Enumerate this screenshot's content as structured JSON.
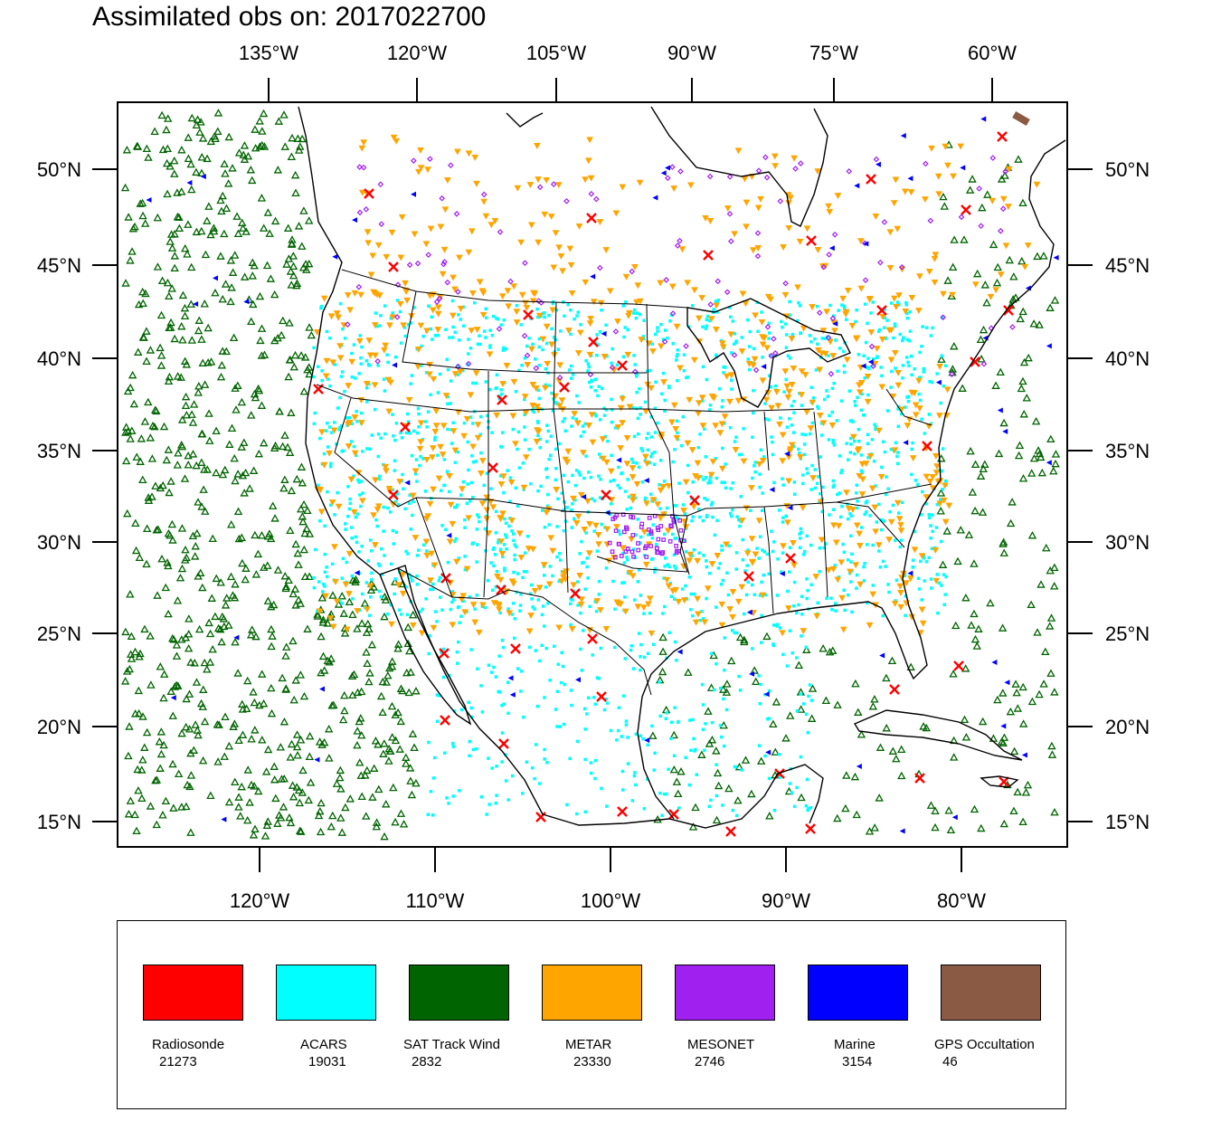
{
  "title": "Assimilated obs on: 2017022700",
  "map": {
    "top_lon_labels": [
      "135°W",
      "120°W",
      "105°W",
      "90°W",
      "75°W",
      "60°W"
    ],
    "bottom_lon_labels": [
      "120°W",
      "110°W",
      "100°W",
      "90°W",
      "80°W"
    ],
    "left_lat_labels": [
      "50°N",
      "45°N",
      "40°N",
      "35°N",
      "30°N",
      "25°N",
      "20°N",
      "15°N"
    ],
    "right_lat_labels": [
      "50°N",
      "45°N",
      "40°N",
      "35°N",
      "30°N",
      "25°N",
      "20°N",
      "15°N"
    ],
    "lon_range_bottom_axis": [
      -128,
      -74
    ],
    "lat_range": [
      14,
      53
    ],
    "projection": "Lambert conformal (approx.)"
  },
  "legend": {
    "items": [
      {
        "name": "Radiosonde",
        "count": "21273",
        "color": "#ff0000",
        "marker": "x-icon"
      },
      {
        "name": "ACARS",
        "count": "19031",
        "color": "#00ffff",
        "marker": "square-dot-icon"
      },
      {
        "name": "SAT Track Wind",
        "count": "2832",
        "color": "#006400",
        "marker": "triangle-up-icon"
      },
      {
        "name": "METAR",
        "count": "23330",
        "color": "#ffa500",
        "marker": "triangle-down-icon"
      },
      {
        "name": "MESONET",
        "count": "2746",
        "color": "#a020f0",
        "marker": "diamond-icon"
      },
      {
        "name": "Marine",
        "count": "3154",
        "color": "#0000ff",
        "marker": "triangle-left-icon"
      },
      {
        "name": "GPS Occultation",
        "count": "46",
        "color": "#8b5a44",
        "marker": "bar-icon"
      }
    ]
  }
}
